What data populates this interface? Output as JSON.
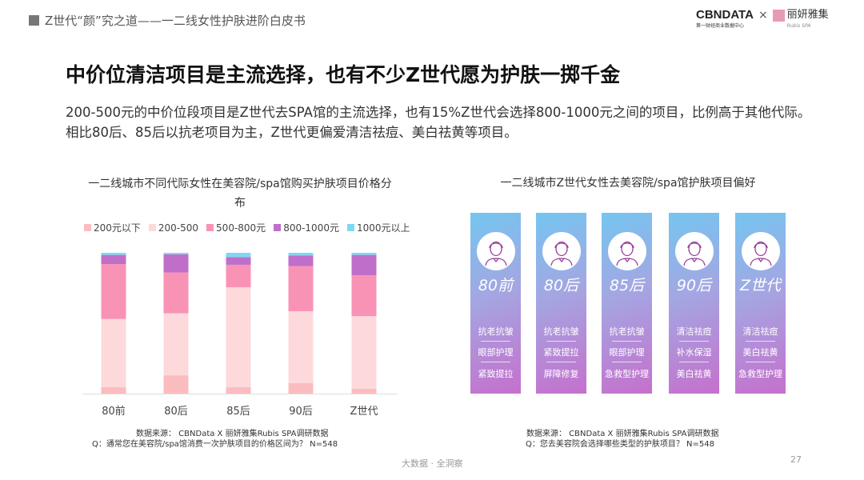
{
  "header": {
    "section": "Z世代“颜”究之道——一二线女性护肤进阶白皮书",
    "logo1": "CBNDATA",
    "logo1_sub": "第一财经商业数据中心",
    "logo_x": "×",
    "logo2": "丽妍雅集",
    "logo2_sub": "Rubis SPA"
  },
  "title": "中价位清洁项目是主流选择，也有不少Z世代愿为护肤一掷千金",
  "description": "200-500元的中价位段项目是Z世代去SPA馆的主流选择，也有15%Z世代会选择800-1000元之间的项目，比例高于其他代际。相比80后、85后以抗老项目为主，Z世代更偏爱清洁祛痘、美白祛黄等项目。",
  "chart_data": {
    "type": "bar",
    "stacked": true,
    "title": "一二线城市不同代际女性在美容院/spa馆购买护肤项目价格分布",
    "categories": [
      "80前",
      "80后",
      "85后",
      "90后",
      "Z世代"
    ],
    "ylim": [
      0,
      100
    ],
    "grid": false,
    "legend_position": "top",
    "series": [
      {
        "name": "200元以下",
        "color": "#fbbcc0",
        "values": [
          4.5,
          13,
          4.5,
          7.5,
          3.5
        ]
      },
      {
        "name": "200-500",
        "color": "#fdd9dc",
        "values": [
          48.5,
          44,
          71,
          51,
          51.5
        ]
      },
      {
        "name": "500-800元",
        "color": "#f993b5",
        "values": [
          39,
          29,
          16,
          32,
          29
        ]
      },
      {
        "name": "800-1000元",
        "color": "#bf6fc9",
        "values": [
          6.5,
          13,
          5.5,
          7.5,
          14.5
        ]
      },
      {
        "name": "1000元以上",
        "color": "#7ed8f5",
        "values": [
          1.5,
          1,
          3,
          2,
          1.5
        ]
      }
    ]
  },
  "right_panel": {
    "title": "一二线城市Z世代女性去美容院/spa馆护肤项目偏好",
    "cards": [
      {
        "label": "80前",
        "icon": "woman-short-hair-icon",
        "items": [
          "抗老抗皱",
          "眼部护理",
          "紧致提拉"
        ]
      },
      {
        "label": "80后",
        "icon": "woman-long-hair-icon",
        "items": [
          "抗老抗皱",
          "紧致提拉",
          "屏障修复"
        ]
      },
      {
        "label": "85后",
        "icon": "woman-bob-hair-icon",
        "items": [
          "抗老抗皱",
          "眼部护理",
          "急救型护理"
        ]
      },
      {
        "label": "90后",
        "icon": "woman-headband-icon",
        "items": [
          "清洁祛痘",
          "补水保湿",
          "美白祛黄"
        ]
      },
      {
        "label": "Z世代",
        "icon": "woman-cap-icon",
        "items": [
          "清洁祛痘",
          "美白祛黄",
          "急救型护理"
        ]
      }
    ]
  },
  "sources": {
    "left_1": "数据来源：  CBNData X 丽妍雅集Rubis  SPA调研数据",
    "left_2": "Q：通常您在美容院/spa馆消费一次护肤项目的价格区间为？ N=548",
    "right_1": "数据来源：  CBNData X 丽妍雅集Rubis  SPA调研数据",
    "right_2": "Q：您去美容院会选择哪些类型的护肤项目？ N=548"
  },
  "footer": "大数据 · 全洞察",
  "page_number": "27"
}
